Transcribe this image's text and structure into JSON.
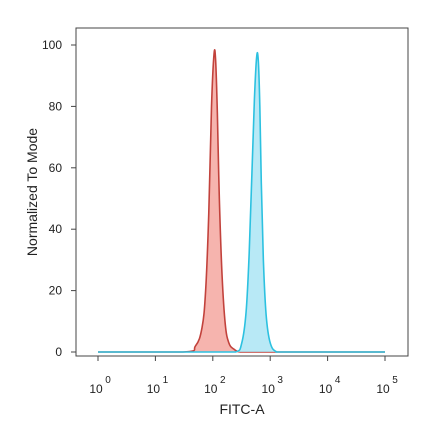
{
  "chart_data": {
    "type": "area",
    "title": "",
    "xlabel": "FITC-A",
    "ylabel": "Normalized To Mode",
    "x_scale": "log",
    "xlim": [
      1,
      100000
    ],
    "ylim": [
      0,
      100
    ],
    "grid": false,
    "y_ticks": [
      {
        "value": 0,
        "label": "0"
      },
      {
        "value": 20,
        "label": "20"
      },
      {
        "value": 40,
        "label": "40"
      },
      {
        "value": 60,
        "label": "60"
      },
      {
        "value": 80,
        "label": "80"
      },
      {
        "value": 100,
        "label": "100"
      }
    ],
    "x_ticks": [
      {
        "value": 1,
        "base": "10",
        "exp": "0"
      },
      {
        "value": 10,
        "base": "10",
        "exp": "1"
      },
      {
        "value": 100,
        "base": "10",
        "exp": "2"
      },
      {
        "value": 1000,
        "base": "10",
        "exp": "3"
      },
      {
        "value": 10000,
        "base": "10",
        "exp": "4"
      },
      {
        "value": 100000,
        "base": "10",
        "exp": "5"
      }
    ],
    "series": [
      {
        "color_fill": "#f4a19a",
        "color_line": "#c2423c",
        "x": [
          1,
          30,
          50,
          65,
          75,
          85,
          95,
          105,
          112,
          120,
          130,
          145,
          165,
          190,
          230,
          300,
          500,
          1000,
          100000
        ],
        "y": [
          0,
          0,
          2,
          8,
          20,
          45,
          80,
          97,
          95,
          78,
          50,
          25,
          9,
          3,
          1,
          0,
          0,
          0,
          0
        ]
      },
      {
        "color_fill": "#a6e4f4",
        "color_line": "#2cc1e0",
        "x": [
          1,
          100,
          250,
          320,
          380,
          430,
          480,
          530,
          580,
          620,
          660,
          700,
          760,
          850,
          1000,
          1300,
          2000,
          100000
        ],
        "y": [
          0,
          0,
          0,
          3,
          13,
          32,
          58,
          82,
          96,
          95,
          80,
          55,
          30,
          12,
          3,
          0,
          0,
          0
        ]
      }
    ]
  }
}
